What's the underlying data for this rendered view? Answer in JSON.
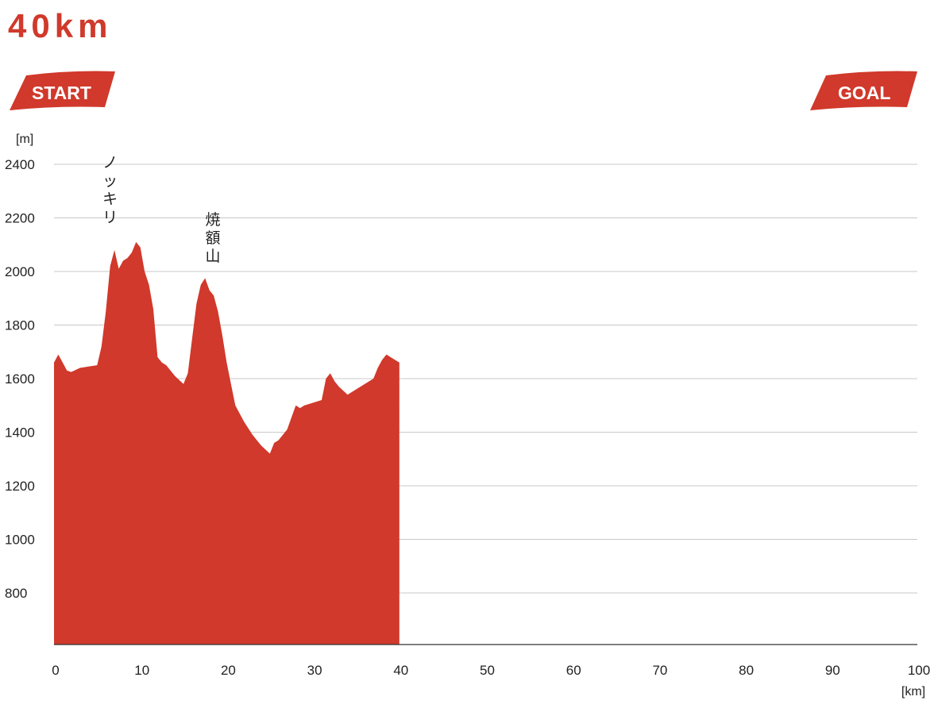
{
  "title": "40km",
  "badges": {
    "start": "START",
    "goal": "GOAL"
  },
  "colors": {
    "accent": "#d0392b",
    "grid": "#c8c8c8",
    "axis": "#333333"
  },
  "chart_data": {
    "type": "area",
    "title": "40km",
    "xlabel": "",
    "ylabel": "",
    "x_unit": "[km]",
    "y_unit": "[m]",
    "xlim": [
      0,
      100
    ],
    "ylim": [
      620,
      2400
    ],
    "x_ticks": [
      0,
      10,
      20,
      30,
      40,
      50,
      60,
      70,
      80,
      90,
      100
    ],
    "y_ticks": [
      800,
      1000,
      1200,
      1400,
      1600,
      1800,
      2000,
      2200,
      2400
    ],
    "grid": true,
    "series": [
      {
        "x": [
          0,
          0.5,
          1,
          1.5,
          2,
          3,
          4,
          5,
          5.5,
          6,
          6.5,
          7,
          7.5,
          8,
          8.5,
          9,
          9.5,
          10,
          10.5,
          11,
          11.5,
          12,
          12.5,
          13,
          14,
          15,
          15.5,
          16,
          16.5,
          17,
          17.5,
          18,
          18.5,
          19,
          19.5,
          20,
          20.5,
          21,
          22,
          23,
          24,
          25,
          25.5,
          26,
          26.5,
          27,
          28,
          28.5,
          29,
          30,
          31,
          31.5,
          32,
          32.5,
          33,
          34,
          35,
          36,
          37,
          37.5,
          38,
          38.5,
          39,
          40
        ],
        "y": [
          1660,
          1690,
          1660,
          1630,
          1625,
          1640,
          1645,
          1650,
          1720,
          1850,
          2020,
          2080,
          2010,
          2040,
          2050,
          2070,
          2110,
          2090,
          2000,
          1950,
          1860,
          1680,
          1660,
          1650,
          1610,
          1580,
          1620,
          1750,
          1880,
          1950,
          1975,
          1930,
          1910,
          1850,
          1760,
          1660,
          1580,
          1500,
          1440,
          1390,
          1350,
          1320,
          1360,
          1370,
          1390,
          1410,
          1500,
          1490,
          1500,
          1510,
          1520,
          1600,
          1620,
          1590,
          1570,
          1540,
          1560,
          1580,
          1600,
          1640,
          1670,
          1690,
          1680,
          1660
        ]
      }
    ],
    "annotations": [
      {
        "text": "ノッキリ",
        "x": 6.5,
        "y": 2130
      },
      {
        "text": "焼額山",
        "x": 18.4,
        "y": 1985
      }
    ]
  }
}
